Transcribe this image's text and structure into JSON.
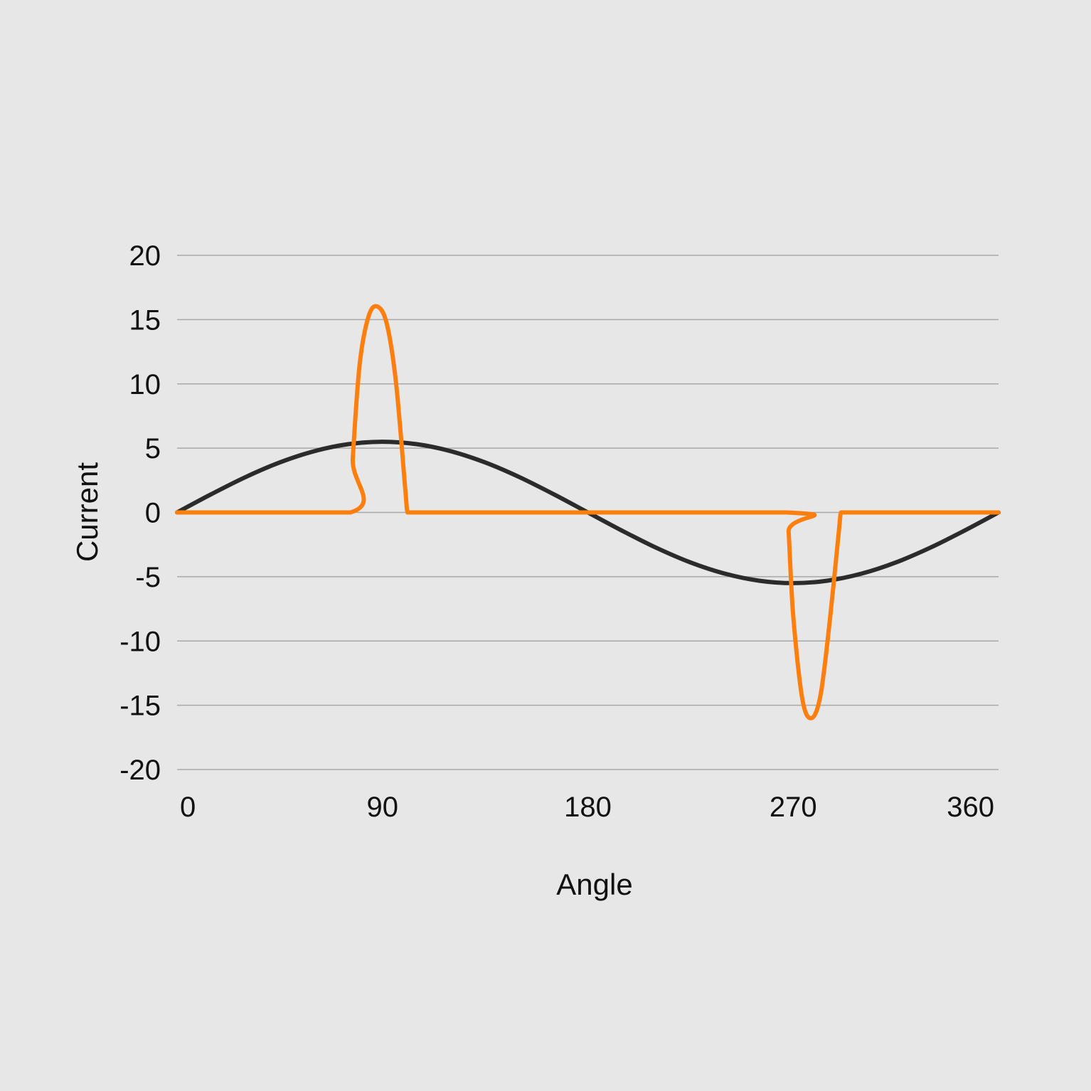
{
  "colors": {
    "background": "#e7e7e7",
    "grid": "#a8a8a8",
    "sine": "#2b2b2b",
    "pulse": "#ff7f0e",
    "text": "#111111"
  },
  "chart_data": {
    "type": "line",
    "xlabel": "Angle",
    "ylabel": "Current",
    "xlim": [
      0,
      360
    ],
    "ylim": [
      -20,
      20
    ],
    "x_ticks": [
      0,
      90,
      180,
      270,
      360
    ],
    "x_tick_labels": [
      "0",
      "90",
      "180",
      "270",
      "360"
    ],
    "y_ticks": [
      20,
      15,
      10,
      5,
      0,
      -5,
      -10,
      -15,
      -20
    ],
    "y_tick_labels": [
      "20",
      "15",
      "10",
      "5",
      "0",
      "-5",
      "-10",
      "-15",
      "-20"
    ],
    "grid": "horizontal",
    "legend": "none",
    "series": [
      {
        "color": "#2b2b2b",
        "x": [
          0,
          15,
          30,
          45,
          60,
          75,
          90,
          105,
          120,
          135,
          150,
          165,
          180,
          195,
          210,
          225,
          240,
          255,
          270,
          285,
          300,
          315,
          330,
          345,
          360
        ],
        "values": [
          0,
          1.42,
          2.75,
          3.89,
          4.76,
          5.31,
          5.5,
          5.31,
          4.76,
          3.89,
          2.75,
          1.42,
          0,
          -1.42,
          -2.75,
          -3.89,
          -4.76,
          -5.31,
          -5.5,
          -5.31,
          -4.76,
          -3.89,
          -2.75,
          -1.42,
          0
        ]
      },
      {
        "color": "#ff7f0e",
        "x": [
          0,
          76,
          77,
          80,
          84,
          88,
          92,
          96,
          100,
          101,
          103,
          267,
          268,
          270,
          274,
          278,
          282,
          286,
          290,
          291,
          293,
          360
        ],
        "values": [
          0,
          0,
          4.2,
          11.5,
          15.3,
          16,
          14.6,
          10,
          1.8,
          0,
          0,
          0,
          -1.5,
          -8,
          -14.5,
          -16,
          -14.2,
          -8.5,
          -1.5,
          0,
          0,
          0
        ]
      }
    ]
  }
}
